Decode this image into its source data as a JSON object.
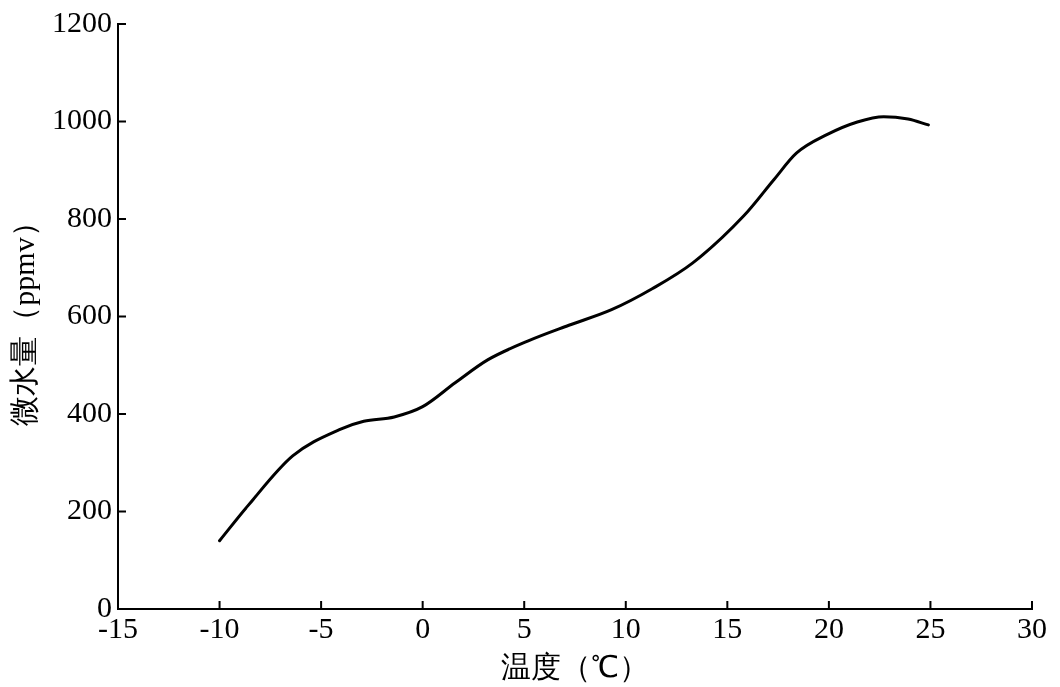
{
  "chart_data": {
    "type": "line",
    "xlabel": "温度（℃）",
    "ylabel": "微水量（ppmv）",
    "xlim": [
      -15,
      30
    ],
    "xticks": [
      -15,
      -10,
      -5,
      0,
      5,
      10,
      15,
      20,
      25,
      30
    ],
    "ylim": [
      0,
      1200
    ],
    "yticks": [
      0,
      200,
      400,
      600,
      800,
      1000,
      1200
    ],
    "grid": false,
    "legend": false,
    "marker": "none",
    "line_style": "solid",
    "series": [
      {
        "color": "#000000",
        "x": [
          -10,
          -8.6,
          -6.4,
          -4.1,
          -2.9,
          -1.4,
          0,
          1.6,
          3.2,
          5.2,
          7.2,
          9.3,
          11.3,
          13.3,
          15.8,
          17.3,
          18.4,
          19.9,
          21.4,
          22.7,
          23.9,
          24.9
        ],
        "values": [
          140,
          212,
          314,
          368,
          385,
          394,
          415,
          464,
          511,
          550,
          582,
          614,
          657,
          710,
          806,
          881,
          935,
          973,
          999,
          1010,
          1005,
          993
        ]
      }
    ]
  }
}
